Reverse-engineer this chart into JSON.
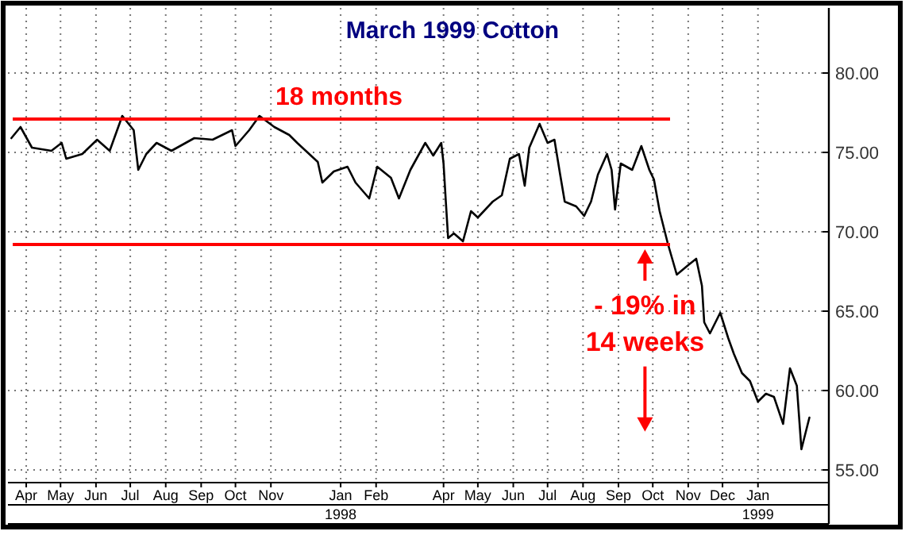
{
  "chart_data": {
    "type": "line",
    "title": "March 1999 Cotton",
    "x": [
      "1997-03-19",
      "1997-03-27",
      "1997-04-06",
      "1997-04-23",
      "1997-05-02",
      "1997-05-06",
      "1997-05-20",
      "1997-06-02",
      "1997-06-13",
      "1997-06-24",
      "1997-07-04",
      "1997-07-08",
      "1997-07-15",
      "1997-07-24",
      "1997-08-06",
      "1997-08-26",
      "1997-09-11",
      "1997-09-28",
      "1997-10-01",
      "1997-10-13",
      "1997-10-22",
      "1997-11-04",
      "1997-11-17",
      "1997-11-24",
      "1997-12-12",
      "1997-12-16",
      "1997-12-26",
      "1998-01-07",
      "1998-01-14",
      "1998-01-26",
      "1998-02-02",
      "1998-02-14",
      "1998-02-21",
      "1998-03-03",
      "1998-03-16",
      "1998-03-23",
      "1998-03-30",
      "1998-04-01",
      "1998-04-03",
      "1998-04-05",
      "1998-04-10",
      "1998-04-18",
      "1998-04-25",
      "1998-05-01",
      "1998-05-14",
      "1998-05-22",
      "1998-05-29",
      "1998-06-06",
      "1998-06-11",
      "1998-06-15",
      "1998-06-24",
      "1998-07-01",
      "1998-07-07",
      "1998-07-12",
      "1998-07-16",
      "1998-07-26",
      "1998-08-02",
      "1998-08-08",
      "1998-08-14",
      "1998-08-22",
      "1998-08-26",
      "1998-08-29",
      "1998-09-03",
      "1998-09-13",
      "1998-09-21",
      "1998-09-28",
      "1998-10-02",
      "1998-10-07",
      "1998-10-14",
      "1998-10-18",
      "1998-10-22",
      "1998-11-01",
      "1998-11-08",
      "1998-11-13",
      "1998-11-15",
      "1998-11-20",
      "1998-11-29",
      "1998-12-06",
      "1998-12-11",
      "1998-12-18",
      "1998-12-25",
      "1999-01-01",
      "1999-01-08",
      "1999-01-15",
      "1999-01-23",
      "1999-01-29",
      "1999-02-04",
      "1999-02-08",
      "1999-02-15"
    ],
    "series": [
      {
        "color": "#000000",
        "values": [
          75.9,
          76.6,
          75.3,
          75.1,
          75.6,
          74.6,
          74.9,
          75.8,
          75.1,
          77.3,
          76.4,
          73.9,
          74.9,
          75.6,
          75.1,
          75.9,
          75.8,
          76.4,
          75.4,
          76.4,
          77.3,
          76.6,
          76.1,
          75.6,
          74.4,
          73.1,
          73.8,
          74.1,
          73.1,
          72.1,
          74.1,
          73.4,
          72.1,
          73.9,
          75.6,
          74.8,
          75.6,
          74.3,
          71.9,
          69.6,
          69.9,
          69.4,
          71.3,
          70.9,
          71.9,
          72.3,
          74.6,
          74.9,
          72.9,
          75.3,
          76.8,
          75.6,
          75.8,
          73.6,
          71.9,
          71.6,
          71.0,
          71.9,
          73.6,
          74.9,
          73.9,
          71.4,
          74.3,
          73.9,
          75.4,
          73.9,
          73.3,
          71.3,
          69.3,
          68.3,
          67.3,
          67.9,
          68.3,
          66.6,
          64.3,
          63.6,
          64.9,
          63.3,
          62.3,
          61.1,
          60.6,
          59.3,
          59.8,
          59.6,
          57.9,
          61.4,
          60.3,
          56.3,
          58.3
        ]
      }
    ],
    "xlim": [
      "1997-03-16",
      "1999-03-04"
    ],
    "xticks": [
      {
        "value": "1997-04-01",
        "label": "Apr"
      },
      {
        "value": "1997-05-01",
        "label": "May"
      },
      {
        "value": "1997-06-01",
        "label": "Jun"
      },
      {
        "value": "1997-07-01",
        "label": "Jul"
      },
      {
        "value": "1997-08-01",
        "label": "Aug"
      },
      {
        "value": "1997-09-01",
        "label": "Sep"
      },
      {
        "value": "1997-10-01",
        "label": "Oct"
      },
      {
        "value": "1997-11-01",
        "label": "Nov"
      },
      {
        "value": "1998-01-01",
        "label": "Jan\n1998"
      },
      {
        "value": "1998-02-01",
        "label": "Feb"
      },
      {
        "value": "1998-04-01",
        "label": "Apr"
      },
      {
        "value": "1998-05-01",
        "label": "May"
      },
      {
        "value": "1998-06-01",
        "label": "Jun"
      },
      {
        "value": "1998-07-01",
        "label": "Jul"
      },
      {
        "value": "1998-08-01",
        "label": "Aug"
      },
      {
        "value": "1998-09-01",
        "label": "Sep"
      },
      {
        "value": "1998-10-01",
        "label": "Oct"
      },
      {
        "value": "1998-11-01",
        "label": "Nov"
      },
      {
        "value": "1998-12-01",
        "label": "Dec"
      },
      {
        "value": "1999-01-01",
        "label": "Jan\n1999"
      }
    ],
    "ylim": [
      54.2,
      84.1
    ],
    "yticks": [
      {
        "value": 55,
        "label": "55.00"
      },
      {
        "value": 60,
        "label": "60.00"
      },
      {
        "value": 65,
        "label": "65.00"
      },
      {
        "value": 70,
        "label": "70.00"
      },
      {
        "value": 75,
        "label": "75.00"
      },
      {
        "value": 80,
        "label": "80.00"
      }
    ],
    "grid": true,
    "ref_lines": [
      {
        "axis": "y",
        "value": 77.1,
        "label": "18 months",
        "color": "#ff0000"
      },
      {
        "axis": "y",
        "value": 69.2,
        "color": "#ff0000"
      }
    ],
    "annotations": [
      "- 19% in\n14 weeks"
    ]
  }
}
